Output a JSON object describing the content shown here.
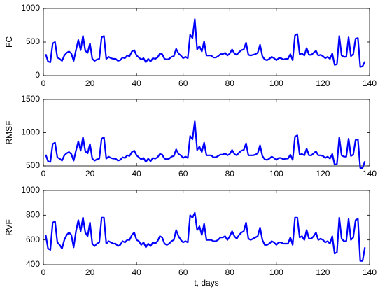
{
  "chart_data": [
    {
      "type": "line",
      "ylabel": "FC",
      "color": "#0000ff",
      "xlim": [
        0,
        140
      ],
      "xticks": [
        0,
        20,
        40,
        60,
        80,
        100,
        120,
        140
      ],
      "ylim": [
        0,
        1000
      ],
      "yticks": [
        0,
        500,
        1000
      ],
      "x": [
        1,
        2,
        3,
        4,
        5,
        6,
        7,
        8,
        9,
        10,
        11,
        12,
        13,
        14,
        15,
        16,
        17,
        18,
        19,
        20,
        21,
        22,
        23,
        24,
        25,
        26,
        27,
        28,
        29,
        30,
        31,
        32,
        33,
        34,
        35,
        36,
        37,
        38,
        39,
        40,
        41,
        42,
        43,
        44,
        45,
        46,
        47,
        48,
        49,
        50,
        51,
        52,
        53,
        54,
        55,
        56,
        57,
        58,
        59,
        60,
        61,
        62,
        63,
        64,
        65,
        66,
        67,
        68,
        69,
        70,
        71,
        72,
        73,
        74,
        75,
        76,
        77,
        78,
        79,
        80,
        81,
        82,
        83,
        84,
        85,
        86,
        87,
        88,
        89,
        90,
        91,
        92,
        93,
        94,
        95,
        96,
        97,
        98,
        99,
        100,
        101,
        102,
        103,
        104,
        105,
        106,
        107,
        108,
        109,
        110,
        111,
        112,
        113,
        114,
        115,
        116,
        117,
        118,
        119,
        120,
        121,
        122,
        123,
        124,
        125,
        126,
        127,
        128,
        129,
        130,
        131,
        132,
        133,
        134,
        135,
        136,
        137,
        138
      ],
      "values": [
        320,
        210,
        200,
        480,
        500,
        270,
        250,
        220,
        300,
        340,
        360,
        330,
        220,
        380,
        530,
        380,
        590,
        370,
        340,
        480,
        250,
        220,
        240,
        250,
        570,
        590,
        250,
        280,
        260,
        250,
        250,
        220,
        230,
        270,
        260,
        300,
        290,
        360,
        380,
        300,
        270,
        240,
        260,
        200,
        250,
        210,
        260,
        250,
        270,
        330,
        320,
        250,
        240,
        250,
        280,
        290,
        400,
        330,
        300,
        260,
        280,
        260,
        610,
        560,
        840,
        390,
        440,
        360,
        510,
        300,
        300,
        300,
        270,
        270,
        290,
        320,
        320,
        340,
        300,
        330,
        390,
        330,
        310,
        350,
        380,
        390,
        490,
        310,
        300,
        310,
        320,
        340,
        460,
        290,
        240,
        230,
        250,
        280,
        260,
        230,
        260,
        260,
        240,
        250,
        250,
        320,
        230,
        600,
        620,
        320,
        330,
        300,
        410,
        310,
        310,
        340,
        370,
        300,
        310,
        290,
        260,
        280,
        250,
        330,
        160,
        170,
        590,
        300,
        280,
        280,
        570,
        290,
        320,
        550,
        560,
        130,
        140,
        210
      ]
    },
    {
      "type": "line",
      "ylabel": "RMSF",
      "color": "#0000ff",
      "xlim": [
        0,
        140
      ],
      "xticks": [
        0,
        20,
        40,
        60,
        80,
        100,
        120,
        140
      ],
      "ylim": [
        500,
        1500
      ],
      "yticks": [
        500,
        1000,
        1500
      ],
      "x": [
        1,
        2,
        3,
        4,
        5,
        6,
        7,
        8,
        9,
        10,
        11,
        12,
        13,
        14,
        15,
        16,
        17,
        18,
        19,
        20,
        21,
        22,
        23,
        24,
        25,
        26,
        27,
        28,
        29,
        30,
        31,
        32,
        33,
        34,
        35,
        36,
        37,
        38,
        39,
        40,
        41,
        42,
        43,
        44,
        45,
        46,
        47,
        48,
        49,
        50,
        51,
        52,
        53,
        54,
        55,
        56,
        57,
        58,
        59,
        60,
        61,
        62,
        63,
        64,
        65,
        66,
        67,
        68,
        69,
        70,
        71,
        72,
        73,
        74,
        75,
        76,
        77,
        78,
        79,
        80,
        81,
        82,
        83,
        84,
        85,
        86,
        87,
        88,
        89,
        90,
        91,
        92,
        93,
        94,
        95,
        96,
        97,
        98,
        99,
        100,
        101,
        102,
        103,
        104,
        105,
        106,
        107,
        108,
        109,
        110,
        111,
        112,
        113,
        114,
        115,
        116,
        117,
        118,
        119,
        120,
        121,
        122,
        123,
        124,
        125,
        126,
        127,
        128,
        129,
        130,
        131,
        132,
        133,
        134,
        135,
        136,
        137,
        138
      ],
      "values": [
        670,
        570,
        560,
        830,
        850,
        630,
        610,
        580,
        660,
        690,
        710,
        680,
        580,
        730,
        870,
        730,
        930,
        720,
        690,
        830,
        610,
        580,
        600,
        610,
        910,
        930,
        610,
        640,
        620,
        610,
        610,
        580,
        590,
        630,
        620,
        660,
        650,
        710,
        730,
        660,
        630,
        600,
        620,
        560,
        610,
        570,
        620,
        610,
        630,
        680,
        670,
        610,
        600,
        610,
        640,
        650,
        750,
        680,
        660,
        620,
        640,
        620,
        950,
        900,
        1170,
        740,
        790,
        710,
        850,
        660,
        660,
        660,
        630,
        630,
        650,
        670,
        670,
        690,
        660,
        680,
        740,
        680,
        660,
        700,
        730,
        740,
        840,
        660,
        660,
        660,
        670,
        690,
        810,
        650,
        600,
        590,
        610,
        640,
        620,
        590,
        620,
        620,
        600,
        610,
        610,
        670,
        590,
        940,
        960,
        670,
        680,
        660,
        760,
        660,
        660,
        690,
        720,
        660,
        660,
        650,
        620,
        640,
        610,
        680,
        520,
        530,
        930,
        660,
        640,
        640,
        910,
        650,
        670,
        890,
        900,
        470,
        470,
        570
      ]
    },
    {
      "type": "line",
      "ylabel": "RVF",
      "xlabel": "t, days",
      "color": "#0000ff",
      "xlim": [
        0,
        140
      ],
      "xticks": [
        0,
        20,
        40,
        60,
        80,
        100,
        120,
        140
      ],
      "ylim": [
        400,
        1000
      ],
      "yticks": [
        400,
        600,
        800,
        1000
      ],
      "x": [
        1,
        2,
        3,
        4,
        5,
        6,
        7,
        8,
        9,
        10,
        11,
        12,
        13,
        14,
        15,
        16,
        17,
        18,
        19,
        20,
        21,
        22,
        23,
        24,
        25,
        26,
        27,
        28,
        29,
        30,
        31,
        32,
        33,
        34,
        35,
        36,
        37,
        38,
        39,
        40,
        41,
        42,
        43,
        44,
        45,
        46,
        47,
        48,
        49,
        50,
        51,
        52,
        53,
        54,
        55,
        56,
        57,
        58,
        59,
        60,
        61,
        62,
        63,
        64,
        65,
        66,
        67,
        68,
        69,
        70,
        71,
        72,
        73,
        74,
        75,
        76,
        77,
        78,
        79,
        80,
        81,
        82,
        83,
        84,
        85,
        86,
        87,
        88,
        89,
        90,
        91,
        92,
        93,
        94,
        95,
        96,
        97,
        98,
        99,
        100,
        101,
        102,
        103,
        104,
        105,
        106,
        107,
        108,
        109,
        110,
        111,
        112,
        113,
        114,
        115,
        116,
        117,
        118,
        119,
        120,
        121,
        122,
        123,
        124,
        125,
        126,
        127,
        128,
        129,
        130,
        131,
        132,
        133,
        134,
        135,
        136,
        137,
        138
      ],
      "values": [
        640,
        530,
        520,
        740,
        750,
        580,
        560,
        530,
        600,
        640,
        660,
        640,
        540,
        670,
        760,
        670,
        780,
        660,
        630,
        740,
        570,
        550,
        570,
        580,
        780,
        780,
        570,
        590,
        580,
        570,
        570,
        550,
        560,
        590,
        580,
        600,
        600,
        640,
        660,
        600,
        590,
        560,
        580,
        540,
        570,
        550,
        580,
        570,
        590,
        630,
        620,
        570,
        560,
        570,
        590,
        600,
        680,
        630,
        600,
        580,
        590,
        580,
        800,
        780,
        820,
        680,
        710,
        640,
        730,
        600,
        600,
        600,
        590,
        590,
        600,
        620,
        620,
        630,
        600,
        630,
        670,
        630,
        610,
        640,
        660,
        670,
        740,
        610,
        600,
        610,
        620,
        630,
        700,
        600,
        560,
        560,
        570,
        590,
        580,
        560,
        580,
        580,
        570,
        570,
        570,
        620,
        560,
        780,
        780,
        620,
        630,
        600,
        680,
        610,
        610,
        630,
        660,
        600,
        610,
        600,
        580,
        590,
        570,
        630,
        490,
        500,
        780,
        610,
        590,
        590,
        770,
        600,
        620,
        760,
        770,
        430,
        430,
        540
      ]
    }
  ]
}
